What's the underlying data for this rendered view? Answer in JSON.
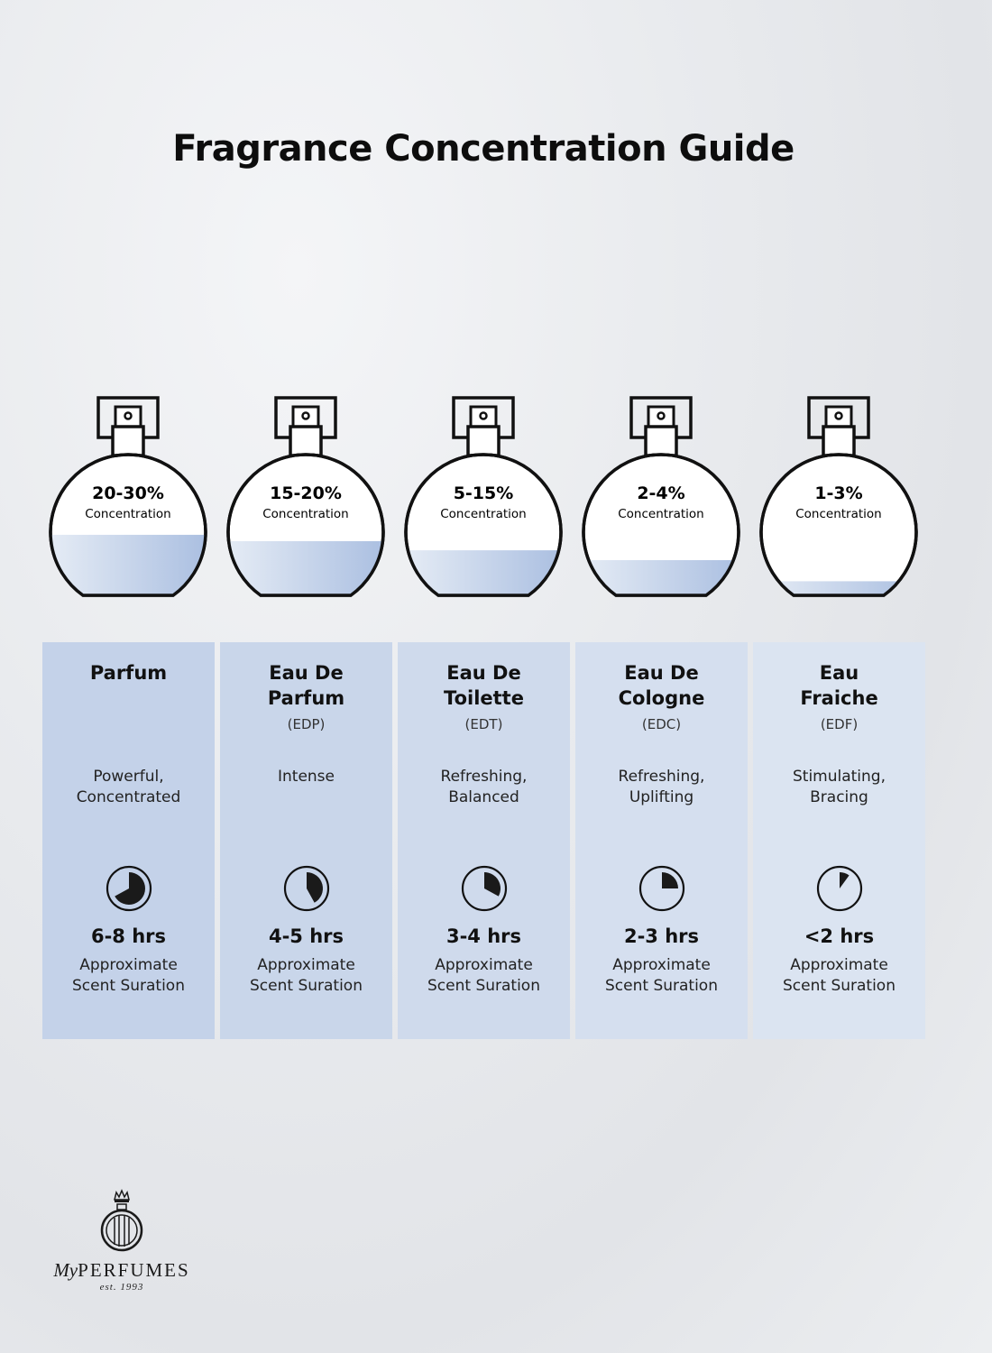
{
  "title": "Fragrance Concentration Guide",
  "colors": {
    "fill_light": "#e8eef6",
    "fill_dark": "#a8bde0",
    "stroke": "#111111"
  },
  "types": [
    {
      "concentration": "20-30%",
      "concentration_label": "Concentration",
      "fill_fraction": 0.43,
      "name_lines": [
        "Parfum"
      ],
      "abbr": "",
      "desc_lines": [
        "Powerful,",
        "Concentrated"
      ],
      "duration_fraction": 0.67,
      "hours": "6-8 hrs",
      "approx_lines": [
        "Approximate",
        "Scent Suration"
      ],
      "bg": "#c4d2e9"
    },
    {
      "concentration": "15-20%",
      "concentration_label": "Concentration",
      "fill_fraction": 0.385,
      "name_lines": [
        "Eau De",
        "Parfum"
      ],
      "abbr": "(EDP)",
      "desc_lines": [
        "Intense",
        ""
      ],
      "duration_fraction": 0.42,
      "hours": "4-5 hrs",
      "approx_lines": [
        "Approximate",
        "Scent Suration"
      ],
      "bg": "#c9d6ea"
    },
    {
      "concentration": "5-15%",
      "concentration_label": "Concentration",
      "fill_fraction": 0.32,
      "name_lines": [
        "Eau De",
        "Toilette"
      ],
      "abbr": "(EDT)",
      "desc_lines": [
        "Refreshing,",
        "Balanced"
      ],
      "duration_fraction": 0.33,
      "hours": "3-4 hrs",
      "approx_lines": [
        "Approximate",
        "Scent Suration"
      ],
      "bg": "#cfdaec"
    },
    {
      "concentration": "2-4%",
      "concentration_label": "Concentration",
      "fill_fraction": 0.25,
      "name_lines": [
        "Eau De",
        "Cologne"
      ],
      "abbr": "(EDC)",
      "desc_lines": [
        "Refreshing,",
        "Uplifting"
      ],
      "duration_fraction": 0.25,
      "hours": "2-3 hrs",
      "approx_lines": [
        "Approximate",
        "Scent Suration"
      ],
      "bg": "#d5dfef"
    },
    {
      "concentration": "1-3%",
      "concentration_label": "Concentration",
      "fill_fraction": 0.1,
      "name_lines": [
        "Eau",
        "Fraiche"
      ],
      "abbr": "(EDF)",
      "desc_lines": [
        "Stimulating,",
        "Bracing"
      ],
      "duration_fraction": 0.1,
      "hours": "<2 hrs",
      "approx_lines": [
        "Approximate",
        "Scent Suration"
      ],
      "bg": "#dbe4f1"
    }
  ],
  "logo": {
    "brand_my": "My",
    "brand_rest": "PERFUMES",
    "est": "est. 1993"
  }
}
